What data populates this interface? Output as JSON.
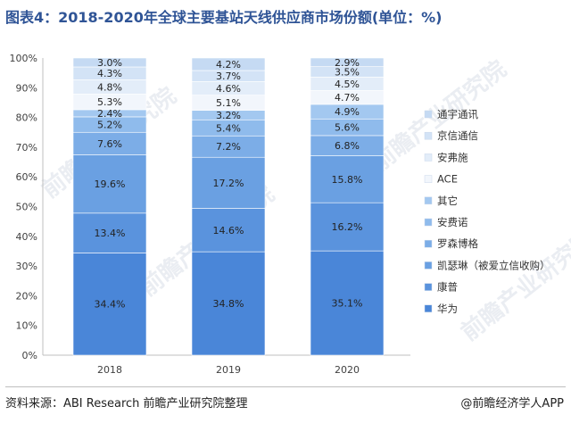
{
  "title": "图表4：2018-2020年全球主要基站天线供应商市场份额(单位：%)",
  "source": "资料来源：ABI Research 前瞻产业研究院整理",
  "credit": "@前瞻经济学人APP",
  "watermark": "前瞻产业研究院",
  "chart_data": {
    "type": "bar",
    "stacked": true,
    "categories": [
      "2018",
      "2019",
      "2020"
    ],
    "ylim": [
      0,
      100
    ],
    "yticks": [
      "0%",
      "10%",
      "20%",
      "30%",
      "40%",
      "50%",
      "60%",
      "70%",
      "80%",
      "90%",
      "100%"
    ],
    "legend_position": "right",
    "series": [
      {
        "name": "华为",
        "values": [
          34.4,
          34.8,
          35.1
        ],
        "labels": [
          "34.4%",
          "34.8%",
          "35.1%"
        ],
        "color": "#4a86d8"
      },
      {
        "name": "康普",
        "values": [
          13.4,
          14.6,
          16.2
        ],
        "labels": [
          "13.4%",
          "14.6%",
          "16.2%"
        ],
        "color": "#5a93dd"
      },
      {
        "name": "凯瑟琳（被爱立信收购）",
        "values": [
          19.6,
          17.2,
          15.8
        ],
        "labels": [
          "19.6%",
          "17.2%",
          "15.8%"
        ],
        "color": "#6aa0e2"
      },
      {
        "name": "罗森博格",
        "values": [
          7.6,
          7.2,
          6.8
        ],
        "labels": [
          "7.6%",
          "7.2%",
          "6.8%"
        ],
        "color": "#7cade7"
      },
      {
        "name": "安费诺",
        "values": [
          5.2,
          5.4,
          5.6
        ],
        "labels": [
          "5.2%",
          "5.4%",
          "5.6%"
        ],
        "color": "#8fbbec"
      },
      {
        "name": "其它",
        "values": [
          2.4,
          3.2,
          4.9
        ],
        "labels": [
          "2.4%",
          "3.2%",
          "4.9%"
        ],
        "color": "#a3c8f0"
      },
      {
        "name": "ACE",
        "values": [
          5.3,
          5.1,
          4.7
        ],
        "labels": [
          "5.3%",
          "5.1%",
          "4.7%"
        ],
        "color": "#f2f6fc"
      },
      {
        "name": "安弗施",
        "values": [
          4.8,
          4.6,
          4.5
        ],
        "labels": [
          "4.8%",
          "4.6%",
          "4.5%"
        ],
        "color": "#e3edf9"
      },
      {
        "name": "京信通信",
        "values": [
          4.3,
          3.7,
          3.5
        ],
        "labels": [
          "4.3%",
          "3.7%",
          "3.5%"
        ],
        "color": "#d3e3f6"
      },
      {
        "name": "通宇通讯",
        "values": [
          3.0,
          4.2,
          2.9
        ],
        "labels": [
          "3.0%",
          "4.2%",
          "2.9%"
        ],
        "color": "#c5daf3"
      }
    ]
  }
}
